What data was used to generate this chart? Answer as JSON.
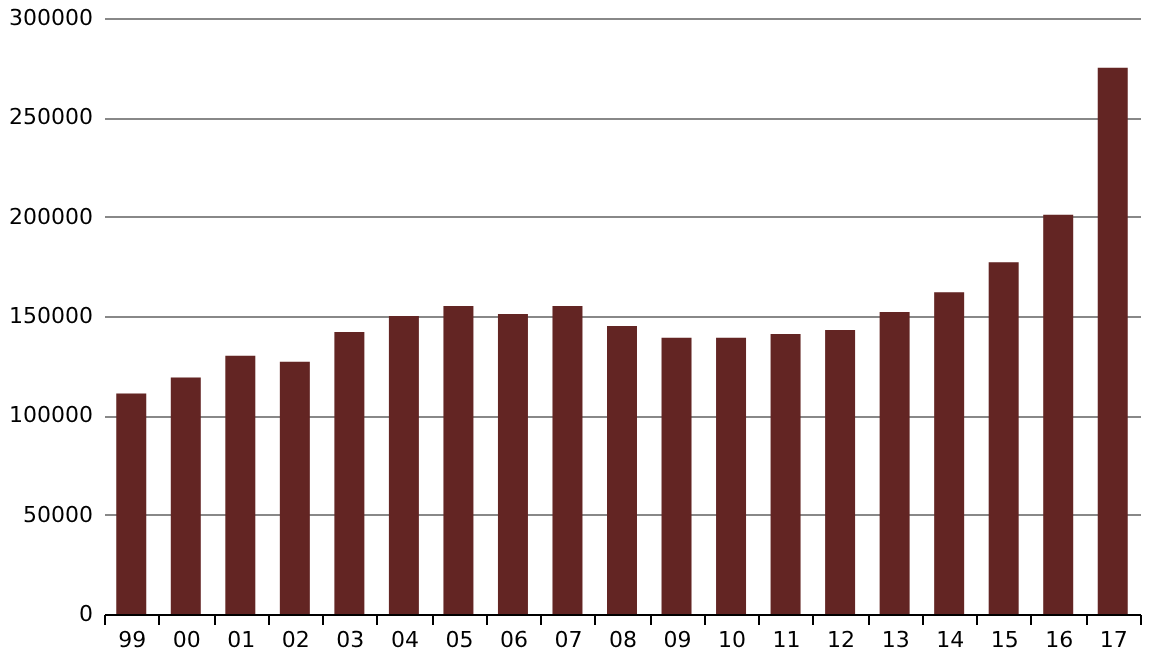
{
  "chart_data": {
    "type": "bar",
    "categories": [
      "99",
      "00",
      "01",
      "02",
      "03",
      "04",
      "05",
      "06",
      "07",
      "08",
      "09",
      "10",
      "11",
      "12",
      "13",
      "14",
      "15",
      "16",
      "17"
    ],
    "values": [
      111000,
      119000,
      130000,
      127000,
      142000,
      150000,
      155000,
      151000,
      155000,
      145000,
      139000,
      139000,
      141000,
      143000,
      152000,
      162000,
      177000,
      201000,
      275000
    ],
    "color": "#632523",
    "ylim": [
      0,
      300000
    ],
    "yticks": [
      0,
      50000,
      100000,
      150000,
      200000,
      250000,
      300000
    ],
    "grid": "y"
  }
}
